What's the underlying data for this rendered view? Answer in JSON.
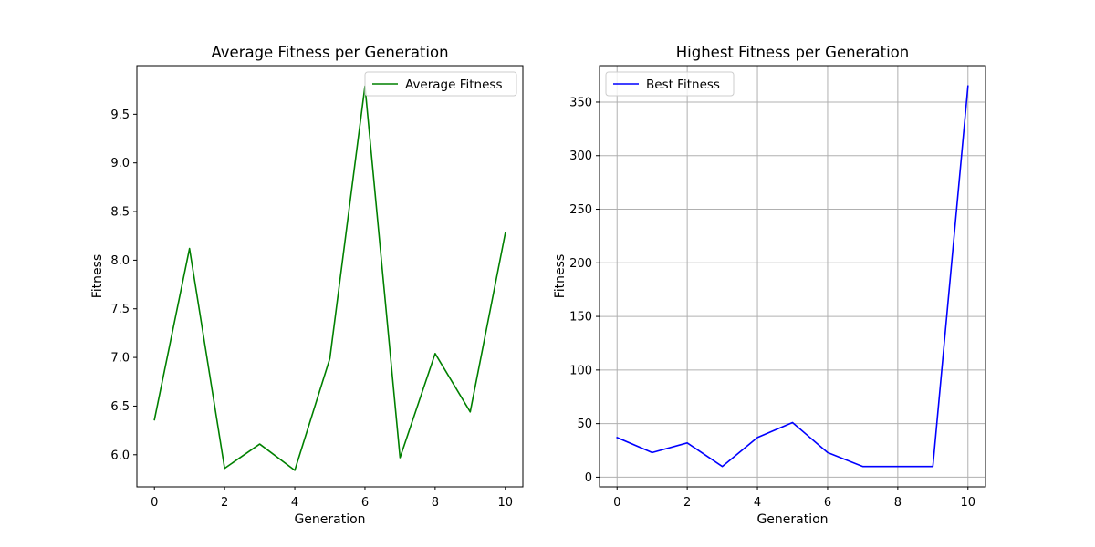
{
  "chart_data": [
    {
      "type": "line",
      "title": "Average Fitness per Generation",
      "xlabel": "Generation",
      "ylabel": "Fitness",
      "xlim": [
        -0.5,
        10.5
      ],
      "ylim": [
        5.67,
        10.0
      ],
      "xticks": [
        0,
        2,
        4,
        6,
        8,
        10
      ],
      "xtick_labels": [
        "0",
        "2",
        "4",
        "6",
        "8",
        "10"
      ],
      "yticks": [
        6.0,
        6.5,
        7.0,
        7.5,
        8.0,
        8.5,
        9.0,
        9.5
      ],
      "ytick_labels": [
        "6.0",
        "6.5",
        "7.0",
        "7.5",
        "8.0",
        "8.5",
        "9.0",
        "9.5"
      ],
      "grid": false,
      "legend_position": "top-right",
      "series": [
        {
          "name": "Average Fitness",
          "color": "#008000",
          "x": [
            0,
            1,
            2,
            3,
            4,
            5,
            6,
            7,
            8,
            9,
            10
          ],
          "values": [
            6.36,
            8.12,
            5.86,
            6.11,
            5.84,
            6.99,
            9.79,
            5.97,
            7.04,
            6.44,
            8.28
          ]
        }
      ]
    },
    {
      "type": "line",
      "title": "Highest Fitness per Generation",
      "xlabel": "Generation",
      "ylabel": "Fitness",
      "xlim": [
        -0.5,
        10.5
      ],
      "ylim": [
        -9.0,
        384.0
      ],
      "xticks": [
        0,
        2,
        4,
        6,
        8,
        10
      ],
      "xtick_labels": [
        "0",
        "2",
        "4",
        "6",
        "8",
        "10"
      ],
      "yticks": [
        0,
        50,
        100,
        150,
        200,
        250,
        300,
        350
      ],
      "ytick_labels": [
        "0",
        "50",
        "100",
        "150",
        "200",
        "250",
        "300",
        "350"
      ],
      "grid": true,
      "legend_position": "top-left",
      "series": [
        {
          "name": "Best Fitness",
          "color": "#0000ff",
          "x": [
            0,
            1,
            2,
            3,
            4,
            5,
            6,
            7,
            8,
            9,
            10
          ],
          "values": [
            37,
            23,
            32,
            10,
            37,
            51,
            23,
            10,
            10,
            10,
            365
          ]
        }
      ]
    }
  ]
}
